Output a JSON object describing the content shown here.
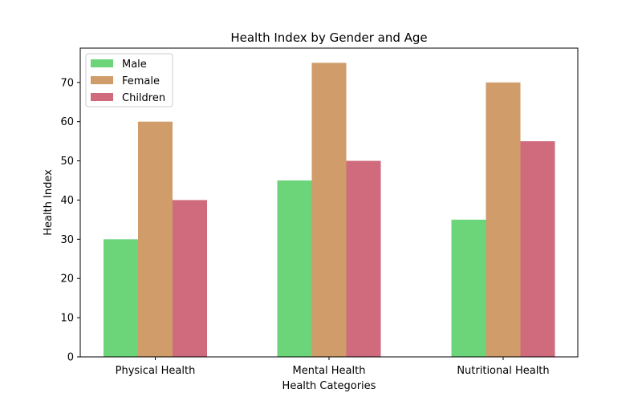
{
  "chart_data": {
    "type": "bar",
    "title": "Health Index by Gender and Age",
    "xlabel": "Health Categories",
    "ylabel": "Health Index",
    "categories": [
      "Physical Health",
      "Mental Health",
      "Nutritional Health"
    ],
    "series": [
      {
        "name": "Male",
        "values": [
          30,
          45,
          35
        ],
        "color": "#6cd57a"
      },
      {
        "name": "Female",
        "values": [
          60,
          75,
          70
        ],
        "color": "#cf9c6a"
      },
      {
        "name": "Children",
        "values": [
          40,
          50,
          55
        ],
        "color": "#cf6b7d"
      }
    ],
    "ylim": [
      0,
      78.75
    ],
    "yticks": [
      "0",
      "10",
      "20",
      "30",
      "40",
      "50",
      "60",
      "70"
    ],
    "legend_position": "top-left",
    "grid": false
  }
}
